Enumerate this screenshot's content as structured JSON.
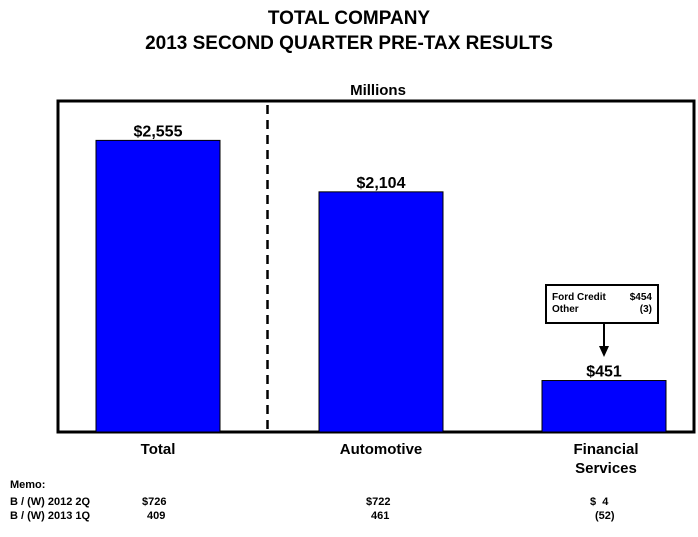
{
  "header": {
    "title": "TOTAL COMPANY",
    "subtitle": "2013 SECOND QUARTER PRE-TAX RESULTS"
  },
  "chart_data": {
    "type": "bar",
    "unit_label": "Millions",
    "categories": [
      "Total",
      "Automotive",
      "Financial Services"
    ],
    "category_lines": [
      [
        "Total"
      ],
      [
        "Automotive"
      ],
      [
        "Financial",
        "Services"
      ]
    ],
    "values": [
      2555,
      2104,
      451
    ],
    "data_labels": [
      "$2,555",
      "$2,104",
      "$451"
    ],
    "bar_color": "#0000FF",
    "ylim": [
      0,
      2900
    ],
    "divider_after_category": 0,
    "callout": {
      "category_index": 2,
      "rows": [
        {
          "label": "Ford Credit",
          "value": "$454"
        },
        {
          "label": "Other",
          "value": "(3)"
        }
      ]
    }
  },
  "memo": {
    "title": "Memo:",
    "rows": [
      {
        "label": "B / (W) 2012 2Q",
        "values": [
          "$726",
          "$722",
          "$  4"
        ]
      },
      {
        "label": "B / (W) 2013 1Q",
        "values": [
          "409",
          "461",
          "(52)"
        ]
      }
    ]
  }
}
